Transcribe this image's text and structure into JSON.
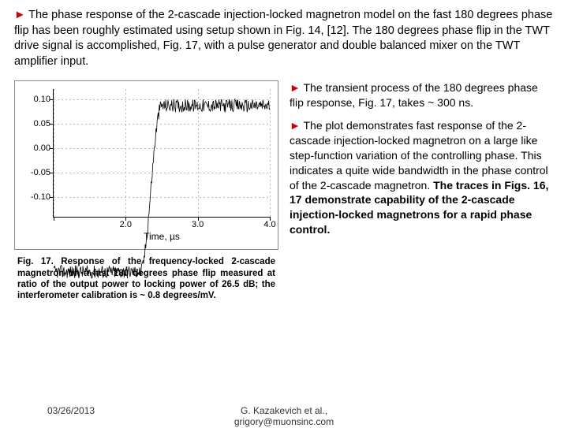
{
  "intro": {
    "arrow": "►",
    "text": "The phase response of the 2-cascade injection-locked magnetron model on the fast 180 degrees phase flip has been roughly estimated using setup shown in Fig. 14, [12]. The 180 degrees phase flip in the TWT drive signal is accomplished, Fig. 17, with a pulse generator and double balanced mixer on the TWT amplifier input."
  },
  "right": {
    "arrow": "►",
    "p1": "The transient process of the 180 degrees phase flip response, Fig. 17, takes ~ 300 ns.",
    "p2a": "The plot demonstrates fast response of the 2-cascade injection-locked magnetron on a large like step-function variation of the controlling phase. This indicates a quite wide bandwidth in the phase control of the 2-cascade magnetron. ",
    "p2b": "The traces in Figs. 16, 17 demonstrate capability of the 2-cascade injection-locked magnetrons for a rapid phase control."
  },
  "chart": {
    "type": "line",
    "ylim": [
      -0.14,
      0.12
    ],
    "xlim": [
      1.0,
      4.0
    ],
    "yticks": [
      {
        "v": 0.1,
        "label": "0.10"
      },
      {
        "v": 0.05,
        "label": "0.05"
      },
      {
        "v": 0.0,
        "label": "0.00"
      },
      {
        "v": -0.05,
        "label": "-0.05"
      },
      {
        "v": -0.1,
        "label": "-0.10"
      }
    ],
    "xticks": [
      {
        "v": 1.0,
        "label": ""
      },
      {
        "v": 2.0,
        "label": "2.0"
      },
      {
        "v": 3.0,
        "label": "3.0"
      },
      {
        "v": 4.0,
        "label": "4.0"
      }
    ],
    "xaxis_title": "Time, µs",
    "trace_color": "#000000",
    "noise_band": 0.008,
    "baseline_low": -0.1,
    "baseline_high": 0.1,
    "step_start": 2.2,
    "step_end": 2.5,
    "grid_color": "#bbbbbb",
    "background_color": "#ffffff",
    "axis_font": "Arial",
    "axis_fontsize": 11
  },
  "caption": "Fig. 17. Response of the frequency-locked 2-cascade magnetron on a fast 180 degrees phase flip measured at ratio of the output power to locking power of 26.5 dB; the interferometer calibration is ~ 0.8 degrees/mV.",
  "footer": {
    "date": "03/26/2013",
    "author_line1": "G. Kazakevich et al.,",
    "author_line2": "grigory@muonsinc.com"
  }
}
